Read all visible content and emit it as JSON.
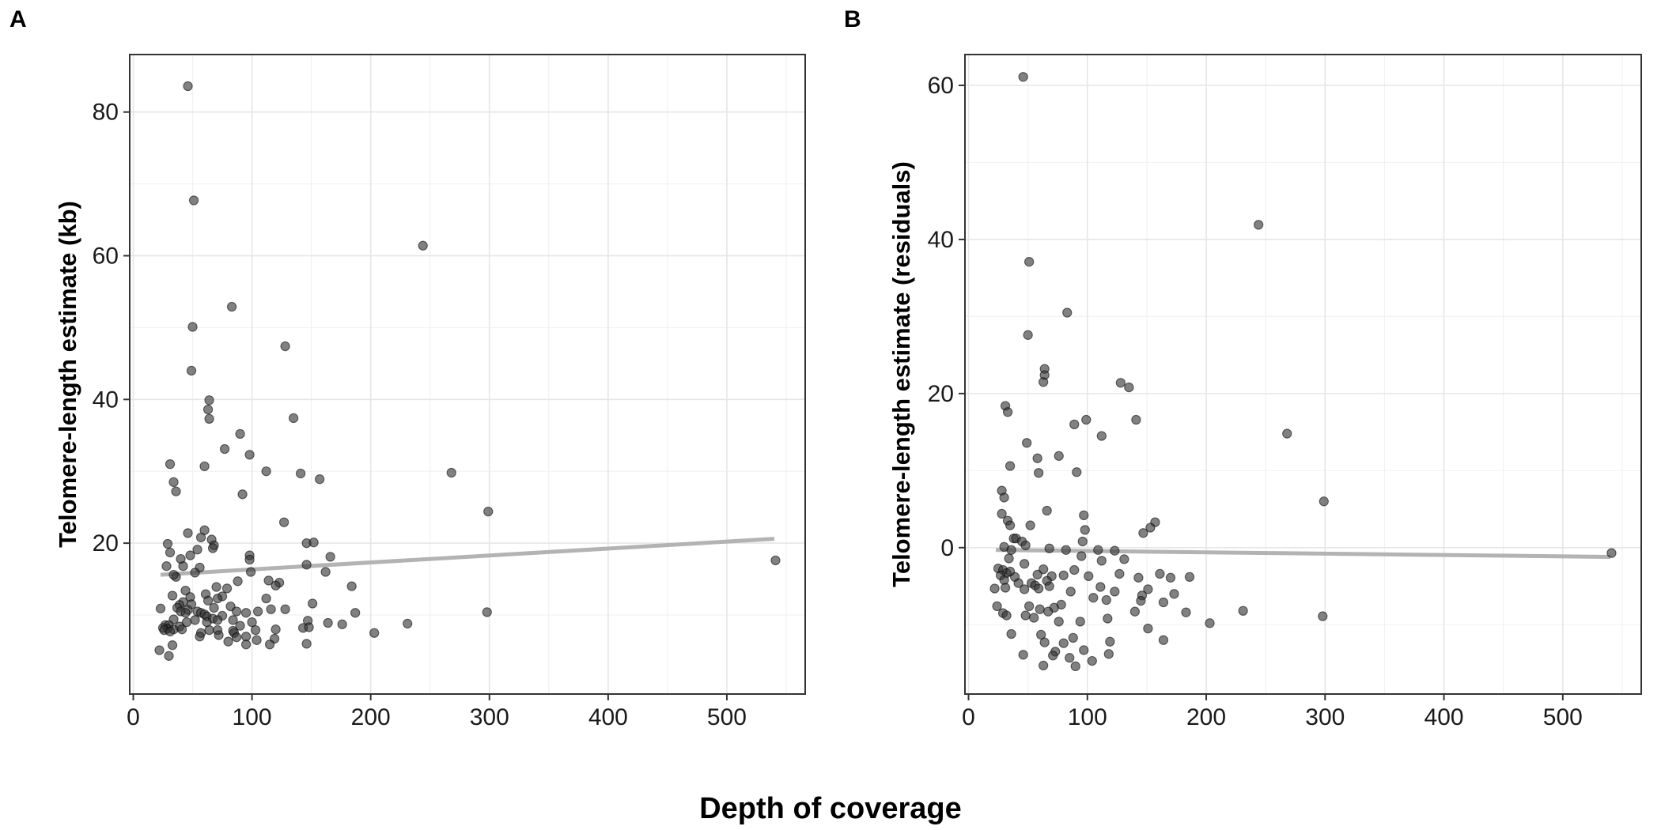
{
  "figure": {
    "panel_labels": [
      "A",
      "B"
    ],
    "shared_xlabel": "Depth of coverage"
  },
  "chart_data": [
    {
      "type": "scatter",
      "panel": "A",
      "xlabel": "Depth of coverage",
      "ylabel": "Telomere-length estimate (kb)",
      "xlim": [
        -3,
        566
      ],
      "ylim": [
        -1,
        88
      ],
      "xticks": [
        0,
        100,
        200,
        300,
        400,
        500
      ],
      "yticks": [
        20,
        40,
        60,
        80
      ],
      "grid": true,
      "point_color": "#333333",
      "line_color": "#b3b3b3",
      "trend_line": {
        "x": [
          23,
          540
        ],
        "y": [
          15.6,
          20.6
        ]
      },
      "points": [
        [
          46,
          83.6
        ],
        [
          51,
          67.7
        ],
        [
          244,
          61.4
        ],
        [
          50,
          50.1
        ],
        [
          83,
          52.9
        ],
        [
          128,
          47.4
        ],
        [
          49,
          44.0
        ],
        [
          64,
          39.9
        ],
        [
          63,
          38.6
        ],
        [
          64,
          37.3
        ],
        [
          135,
          37.4
        ],
        [
          90,
          35.2
        ],
        [
          77,
          33.1
        ],
        [
          98,
          32.3
        ],
        [
          31,
          31.0
        ],
        [
          60,
          30.7
        ],
        [
          112,
          30.0
        ],
        [
          268,
          29.8
        ],
        [
          141,
          29.7
        ],
        [
          157,
          28.9
        ],
        [
          34,
          28.5
        ],
        [
          36,
          27.2
        ],
        [
          92,
          26.8
        ],
        [
          299,
          24.4
        ],
        [
          127,
          22.9
        ],
        [
          60,
          21.8
        ],
        [
          46,
          21.4
        ],
        [
          57,
          20.8
        ],
        [
          66,
          20.5
        ],
        [
          68,
          19.7
        ],
        [
          29,
          19.9
        ],
        [
          146,
          20.0
        ],
        [
          152,
          20.1
        ],
        [
          67,
          19.3
        ],
        [
          54,
          19.1
        ],
        [
          31,
          18.7
        ],
        [
          48,
          18.3
        ],
        [
          98,
          18.3
        ],
        [
          166,
          18.1
        ],
        [
          123,
          14.5
        ],
        [
          98,
          17.7
        ],
        [
          40,
          17.8
        ],
        [
          146,
          17.0
        ],
        [
          56,
          16.6
        ],
        [
          42,
          16.8
        ],
        [
          28,
          16.8
        ],
        [
          162,
          16.0
        ],
        [
          99,
          16.0
        ],
        [
          52,
          15.9
        ],
        [
          36,
          15.3
        ],
        [
          34,
          15.6
        ],
        [
          114,
          14.8
        ],
        [
          88,
          14.7
        ],
        [
          120,
          14.1
        ],
        [
          184,
          14.0
        ],
        [
          70,
          13.9
        ],
        [
          79,
          13.7
        ],
        [
          44,
          13.4
        ],
        [
          61,
          12.9
        ],
        [
          33,
          12.7
        ],
        [
          48,
          12.5
        ],
        [
          75,
          12.6
        ],
        [
          71,
          12.3
        ],
        [
          112,
          12.3
        ],
        [
          63,
          12.0
        ],
        [
          42,
          11.8
        ],
        [
          39,
          11.4
        ],
        [
          49,
          11.5
        ],
        [
          68,
          11.0
        ],
        [
          82,
          11.2
        ],
        [
          37,
          11.0
        ],
        [
          40,
          10.5
        ],
        [
          87,
          10.5
        ],
        [
          46,
          10.7
        ],
        [
          151,
          11.6
        ],
        [
          54,
          10.5
        ],
        [
          95,
          10.3
        ],
        [
          128,
          10.8
        ],
        [
          57,
          10.3
        ],
        [
          116,
          10.8
        ],
        [
          60,
          10.1
        ],
        [
          44,
          10.3
        ],
        [
          23,
          10.9
        ],
        [
          105,
          10.5
        ],
        [
          75,
          9.9
        ],
        [
          62,
          9.8
        ],
        [
          67,
          9.5
        ],
        [
          71,
          9.3
        ],
        [
          52,
          9.3
        ],
        [
          34,
          9.4
        ],
        [
          45,
          9.0
        ],
        [
          84,
          9.3
        ],
        [
          147,
          9.2
        ],
        [
          187,
          10.3
        ],
        [
          298,
          10.4
        ],
        [
          62,
          9.0
        ],
        [
          100,
          9.0
        ],
        [
          164,
          8.9
        ],
        [
          231,
          8.8
        ],
        [
          176,
          8.7
        ],
        [
          27,
          8.6
        ],
        [
          30,
          8.6
        ],
        [
          39,
          8.4
        ],
        [
          90,
          8.5
        ],
        [
          143,
          8.2
        ],
        [
          29,
          8.1
        ],
        [
          25,
          8.2
        ],
        [
          26,
          7.9
        ],
        [
          34,
          8.0
        ],
        [
          41,
          8.0
        ],
        [
          64,
          7.9
        ],
        [
          71,
          7.9
        ],
        [
          84,
          7.8
        ],
        [
          103,
          7.9
        ],
        [
          120,
          8.0
        ],
        [
          148,
          8.3
        ],
        [
          31,
          7.7
        ],
        [
          57,
          7.5
        ],
        [
          85,
          7.5
        ],
        [
          72,
          7.2
        ],
        [
          56,
          7.0
        ],
        [
          95,
          7.0
        ],
        [
          119,
          6.7
        ],
        [
          203,
          7.5
        ],
        [
          87,
          6.9
        ],
        [
          104,
          6.5
        ],
        [
          80,
          6.3
        ],
        [
          115,
          5.9
        ],
        [
          95,
          5.9
        ],
        [
          146,
          6.0
        ],
        [
          33,
          5.8
        ],
        [
          22,
          5.1
        ],
        [
          30,
          4.3
        ],
        [
          541,
          17.6
        ]
      ]
    },
    {
      "type": "scatter",
      "panel": "B",
      "xlabel": "Depth of coverage",
      "ylabel": "Telomere-length estimate (residuals)",
      "xlim": [
        -3,
        566
      ],
      "ylim": [
        -19,
        64
      ],
      "xticks": [
        0,
        100,
        200,
        300,
        400,
        500
      ],
      "yticks": [
        0,
        20,
        40,
        60
      ],
      "grid": true,
      "point_color": "#333333",
      "line_color": "#b3b3b3",
      "trend_line": {
        "x": [
          23,
          540
        ],
        "y": [
          -0.3,
          -1.2
        ]
      },
      "points": [
        [
          46,
          61.1
        ],
        [
          244,
          41.9
        ],
        [
          51,
          37.1
        ],
        [
          50,
          27.6
        ],
        [
          83,
          30.5
        ],
        [
          64,
          23.2
        ],
        [
          64,
          22.4
        ],
        [
          63,
          21.5
        ],
        [
          128,
          21.4
        ],
        [
          135,
          20.8
        ],
        [
          31,
          18.4
        ],
        [
          33,
          17.6
        ],
        [
          99,
          16.6
        ],
        [
          141,
          16.6
        ],
        [
          89,
          16.0
        ],
        [
          268,
          14.8
        ],
        [
          112,
          14.5
        ],
        [
          49,
          13.6
        ],
        [
          76,
          11.9
        ],
        [
          58,
          11.6
        ],
        [
          35,
          10.6
        ],
        [
          59,
          9.7
        ],
        [
          91,
          9.8
        ],
        [
          28,
          7.4
        ],
        [
          30,
          6.5
        ],
        [
          299,
          6.0
        ],
        [
          66,
          4.8
        ],
        [
          28,
          4.4
        ],
        [
          97,
          4.2
        ],
        [
          33,
          3.5
        ],
        [
          157,
          3.3
        ],
        [
          153,
          2.6
        ],
        [
          52,
          2.9
        ],
        [
          98,
          2.3
        ],
        [
          35,
          2.9
        ],
        [
          147,
          1.9
        ],
        [
          38,
          1.2
        ],
        [
          40,
          1.2
        ],
        [
          96,
          0.8
        ],
        [
          45,
          0.8
        ],
        [
          48,
          0.3
        ],
        [
          30,
          0.1
        ],
        [
          36,
          -0.3
        ],
        [
          68,
          -0.1
        ],
        [
          82,
          -0.3
        ],
        [
          109,
          -0.3
        ],
        [
          123,
          -0.4
        ],
        [
          95,
          -1.1
        ],
        [
          131,
          -1.5
        ],
        [
          112,
          -1.7
        ],
        [
          34,
          -1.4
        ],
        [
          47,
          -2.1
        ],
        [
          63,
          -2.8
        ],
        [
          89,
          -2.9
        ],
        [
          25,
          -2.7
        ],
        [
          29,
          -2.9
        ],
        [
          32,
          -3.3
        ],
        [
          35,
          -3.1
        ],
        [
          27,
          -3.6
        ],
        [
          39,
          -3.8
        ],
        [
          58,
          -3.5
        ],
        [
          70,
          -3.7
        ],
        [
          80,
          -3.6
        ],
        [
          101,
          -3.7
        ],
        [
          127,
          -3.4
        ],
        [
          143,
          -3.9
        ],
        [
          161,
          -3.4
        ],
        [
          170,
          -3.9
        ],
        [
          186,
          -3.8
        ],
        [
          66,
          -4.3
        ],
        [
          30,
          -4.2
        ],
        [
          42,
          -4.6
        ],
        [
          53,
          -4.6
        ],
        [
          56,
          -4.9
        ],
        [
          59,
          -5.3
        ],
        [
          47,
          -5.4
        ],
        [
          22,
          -5.3
        ],
        [
          31,
          -5.2
        ],
        [
          68,
          -5.0
        ],
        [
          86,
          -5.7
        ],
        [
          111,
          -5.1
        ],
        [
          123,
          -5.7
        ],
        [
          151,
          -5.4
        ],
        [
          173,
          -6.0
        ],
        [
          146,
          -6.2
        ],
        [
          116,
          -6.8
        ],
        [
          145,
          -6.9
        ],
        [
          164,
          -7.1
        ],
        [
          51,
          -7.6
        ],
        [
          78,
          -7.4
        ],
        [
          24,
          -7.6
        ],
        [
          105,
          -6.5
        ],
        [
          72,
          -7.8
        ],
        [
          60,
          -8.0
        ],
        [
          67,
          -8.3
        ],
        [
          29,
          -8.5
        ],
        [
          32,
          -8.8
        ],
        [
          48,
          -8.8
        ],
        [
          55,
          -9.1
        ],
        [
          183,
          -8.4
        ],
        [
          140,
          -8.3
        ],
        [
          231,
          -8.2
        ],
        [
          298,
          -8.9
        ],
        [
          76,
          -9.6
        ],
        [
          94,
          -9.6
        ],
        [
          117,
          -9.2
        ],
        [
          203,
          -9.8
        ],
        [
          151,
          -10.5
        ],
        [
          36,
          -11.2
        ],
        [
          61,
          -11.3
        ],
        [
          88,
          -11.7
        ],
        [
          64,
          -12.3
        ],
        [
          119,
          -12.2
        ],
        [
          164,
          -12.0
        ],
        [
          80,
          -12.4
        ],
        [
          73,
          -13.5
        ],
        [
          97,
          -13.3
        ],
        [
          118,
          -13.8
        ],
        [
          46,
          -13.9
        ],
        [
          71,
          -14.0
        ],
        [
          85,
          -14.3
        ],
        [
          104,
          -14.7
        ],
        [
          63,
          -15.3
        ],
        [
          90,
          -15.4
        ],
        [
          541,
          -0.7
        ]
      ]
    }
  ]
}
